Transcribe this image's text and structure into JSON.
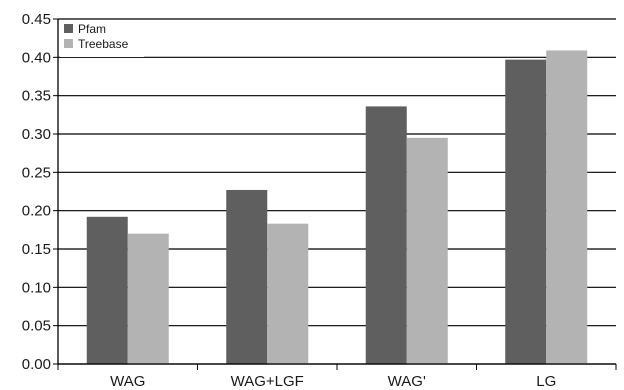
{
  "chart_data": {
    "type": "bar",
    "title": "",
    "xlabel": "",
    "ylabel": "",
    "categories": [
      "WAG",
      "WAG+LGF",
      "WAG'",
      "LG"
    ],
    "series": [
      {
        "name": "Pfam",
        "color": "#5f5f5f",
        "values": [
          0.192,
          0.227,
          0.336,
          0.397
        ]
      },
      {
        "name": "Treebase",
        "color": "#b3b3b3",
        "values": [
          0.17,
          0.183,
          0.295,
          0.409
        ]
      }
    ],
    "ylim": [
      0,
      0.45
    ],
    "yticks": [
      "0.00",
      "0.05",
      "0.10",
      "0.15",
      "0.20",
      "0.25",
      "0.30",
      "0.35",
      "0.40",
      "0.45"
    ],
    "grid": true,
    "legend_position": "top-left"
  }
}
